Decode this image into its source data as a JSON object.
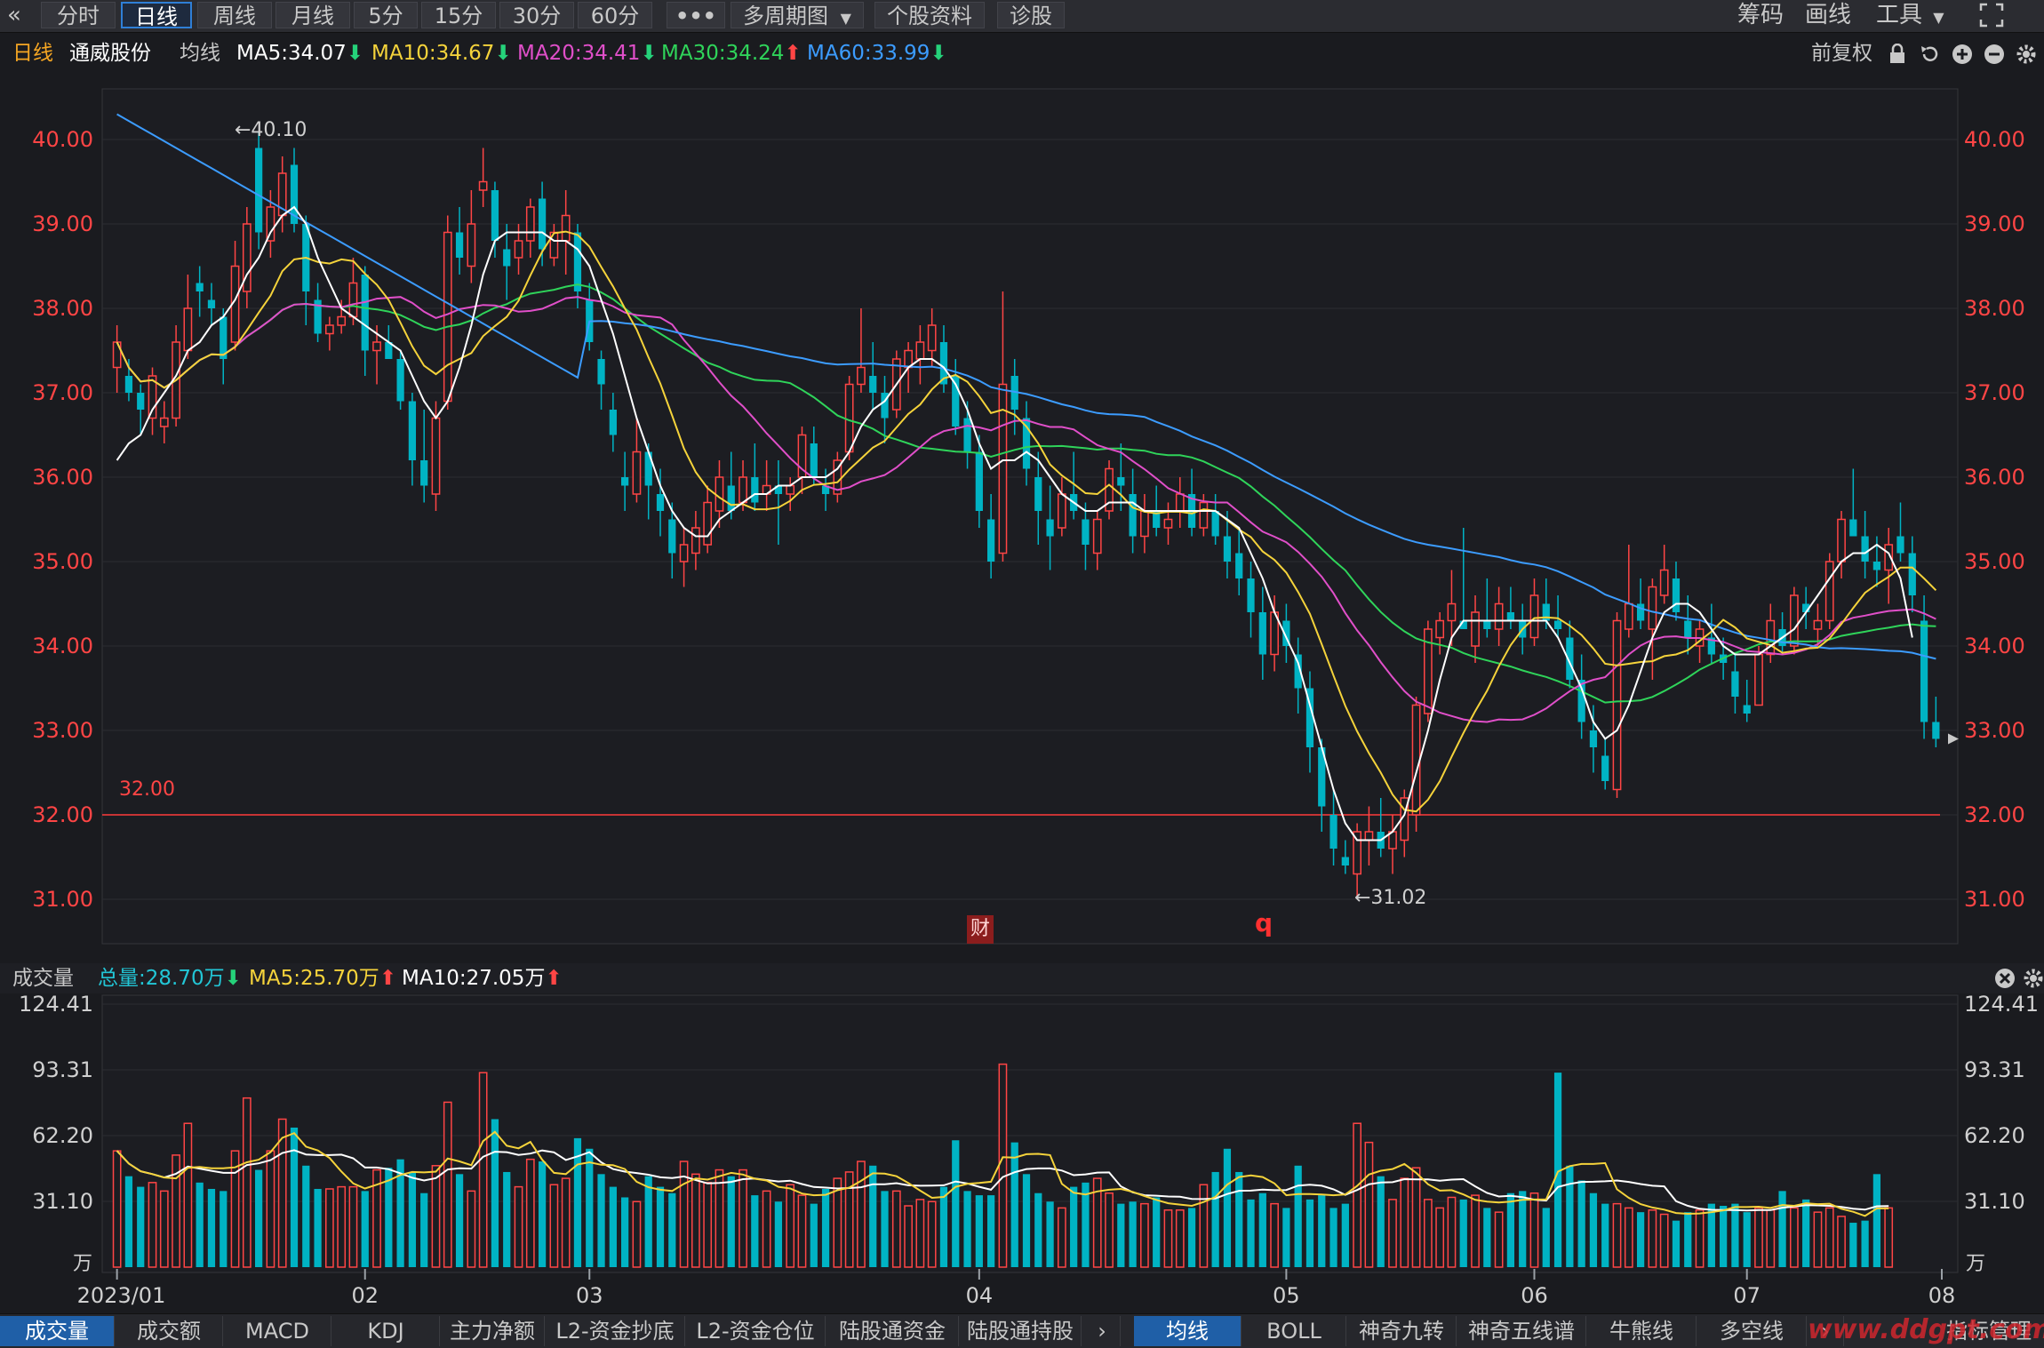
{
  "toolbar": {
    "collapse_icon": "double-chevron-left-icon",
    "tabs": [
      "分时",
      "日线",
      "周线",
      "月线",
      "5分",
      "15分",
      "30分",
      "60分"
    ],
    "active_tab": "日线",
    "more_icon": "ellipsis-icon",
    "multi_period": "多周期图",
    "stock_info": "个股资料",
    "diagnose": "诊股",
    "right": [
      "筹码",
      "画线",
      "工具"
    ],
    "fullscreen_icon": "fullscreen-icon"
  },
  "info": {
    "period": "日线",
    "stock_name": "通威股份",
    "ma_label": "均线",
    "ma5": "MA5:34.07",
    "ma10": "MA10:34.67",
    "ma20": "MA20:34.41",
    "ma30": "MA30:34.24",
    "ma60": "MA60:33.99",
    "adjust": "前复权",
    "icons": [
      "lock-icon",
      "undo-icon",
      "zoom-in-icon",
      "zoom-out-icon",
      "settings-icon"
    ],
    "colors": {
      "ma5": "#ffffff",
      "ma10": "#f5d33b",
      "ma20": "#e04fc9",
      "ma30": "#2fd45a",
      "ma60": "#3c9cff",
      "up": "#ff4545",
      "down": "#00b3c4"
    }
  },
  "price_chart": {
    "y_ticks": [
      "40.00",
      "39.00",
      "38.00",
      "37.00",
      "36.00",
      "35.00",
      "34.00",
      "33.00",
      "32.00",
      "31.00"
    ],
    "high_label": "←40.10",
    "low_label": "←31.02",
    "line_label": "32.00",
    "cai_badge": "财",
    "q_marker": "q"
  },
  "volume": {
    "title": "成交量",
    "total": "总量:28.70万",
    "ma5": "MA5:25.70万",
    "ma10": "MA10:27.05万",
    "y_ticks": [
      "124.41",
      "93.31",
      "62.20",
      "31.10"
    ],
    "unit": "万",
    "close_icon": "close-icon",
    "settings_icon": "settings-icon"
  },
  "x_axis": [
    "2023/01",
    "02",
    "03",
    "04",
    "05",
    "06",
    "07",
    "08"
  ],
  "bottom_tabs_left": [
    "成交量",
    "成交额",
    "MACD",
    "KDJ",
    "主力净额",
    "L2-资金抄底",
    "L2-资金仓位",
    "陆股通资金",
    "陆股通持股"
  ],
  "bottom_tabs_right": [
    "均线",
    "BOLL",
    "神奇九转",
    "神奇五线谱",
    "牛熊线",
    "多空线"
  ],
  "bottom_manage": "指标管理",
  "watermark": "www.ddgpt.com",
  "chart_data": {
    "type": "candlestick",
    "title": "通威股份 日线",
    "ylim": [
      30.5,
      40.5
    ],
    "reference_line": 32.0,
    "ohlc": [
      [
        37.3,
        37.8,
        37.0,
        37.6
      ],
      [
        37.2,
        37.4,
        36.9,
        37.0
      ],
      [
        37.0,
        37.1,
        36.5,
        36.8
      ],
      [
        36.7,
        37.3,
        36.5,
        37.2
      ],
      [
        36.6,
        36.9,
        36.4,
        36.7
      ],
      [
        36.7,
        37.8,
        36.6,
        37.6
      ],
      [
        37.5,
        38.4,
        37.4,
        38.0
      ],
      [
        38.3,
        38.5,
        37.9,
        38.2
      ],
      [
        38.1,
        38.3,
        37.8,
        38.0
      ],
      [
        37.9,
        38.0,
        37.1,
        37.4
      ],
      [
        37.6,
        38.8,
        37.5,
        38.5
      ],
      [
        38.2,
        39.2,
        38.0,
        39.0
      ],
      [
        39.9,
        40.1,
        38.7,
        38.9
      ],
      [
        38.8,
        39.4,
        38.6,
        39.2
      ],
      [
        39.1,
        39.8,
        38.9,
        39.6
      ],
      [
        39.7,
        39.9,
        38.9,
        39.0
      ],
      [
        39.0,
        39.1,
        37.8,
        38.2
      ],
      [
        38.1,
        38.3,
        37.6,
        37.7
      ],
      [
        37.7,
        37.9,
        37.5,
        37.8
      ],
      [
        37.8,
        38.1,
        37.7,
        37.9
      ],
      [
        37.9,
        38.6,
        37.8,
        38.3
      ],
      [
        38.4,
        38.5,
        37.2,
        37.5
      ],
      [
        37.5,
        37.8,
        37.1,
        37.6
      ],
      [
        37.6,
        37.8,
        37.4,
        37.4
      ],
      [
        37.4,
        37.5,
        36.8,
        36.9
      ],
      [
        36.9,
        37.0,
        35.9,
        36.2
      ],
      [
        36.2,
        36.8,
        35.7,
        35.9
      ],
      [
        35.8,
        36.9,
        35.6,
        36.7
      ],
      [
        36.9,
        39.1,
        36.8,
        38.9
      ],
      [
        38.9,
        39.2,
        38.4,
        38.6
      ],
      [
        38.5,
        39.4,
        38.3,
        39.0
      ],
      [
        39.4,
        39.9,
        39.2,
        39.5
      ],
      [
        39.4,
        39.5,
        38.6,
        38.8
      ],
      [
        38.7,
        39.0,
        38.1,
        38.5
      ],
      [
        38.6,
        39.0,
        38.4,
        38.8
      ],
      [
        38.8,
        39.3,
        38.6,
        39.2
      ],
      [
        39.3,
        39.5,
        38.5,
        38.7
      ],
      [
        38.6,
        39.0,
        38.5,
        38.9
      ],
      [
        38.8,
        39.4,
        38.4,
        39.1
      ],
      [
        38.9,
        39.0,
        38.0,
        38.2
      ],
      [
        38.1,
        38.3,
        37.5,
        37.6
      ],
      [
        37.4,
        37.5,
        36.8,
        37.1
      ],
      [
        36.8,
        37.0,
        36.3,
        36.5
      ],
      [
        36.0,
        36.3,
        35.6,
        35.9
      ],
      [
        35.8,
        36.7,
        35.7,
        36.3
      ],
      [
        36.3,
        36.4,
        35.5,
        35.9
      ],
      [
        35.8,
        36.1,
        35.3,
        35.6
      ],
      [
        35.5,
        35.7,
        34.8,
        35.1
      ],
      [
        35.0,
        35.4,
        34.7,
        35.2
      ],
      [
        35.1,
        35.6,
        34.9,
        35.4
      ],
      [
        35.2,
        35.9,
        35.1,
        35.7
      ],
      [
        35.6,
        36.2,
        35.4,
        36.0
      ],
      [
        35.9,
        36.3,
        35.5,
        35.6
      ],
      [
        35.7,
        36.2,
        35.6,
        36.0
      ],
      [
        36.0,
        36.4,
        35.6,
        35.7
      ],
      [
        35.8,
        36.2,
        35.6,
        35.9
      ],
      [
        35.9,
        36.2,
        35.2,
        35.8
      ],
      [
        35.8,
        36.0,
        35.6,
        35.9
      ],
      [
        36.0,
        36.6,
        35.8,
        36.5
      ],
      [
        36.4,
        36.6,
        35.9,
        36.0
      ],
      [
        35.9,
        36.1,
        35.6,
        35.8
      ],
      [
        35.8,
        36.3,
        35.7,
        36.2
      ],
      [
        36.3,
        37.2,
        36.2,
        37.1
      ],
      [
        37.1,
        38.0,
        37.0,
        37.3
      ],
      [
        37.2,
        37.6,
        36.8,
        37.0
      ],
      [
        37.0,
        37.2,
        36.4,
        36.7
      ],
      [
        36.8,
        37.5,
        36.7,
        37.4
      ],
      [
        37.3,
        37.6,
        37.0,
        37.5
      ],
      [
        37.4,
        37.8,
        37.1,
        37.6
      ],
      [
        37.5,
        38.0,
        37.3,
        37.8
      ],
      [
        37.6,
        37.8,
        37.0,
        37.1
      ],
      [
        37.2,
        37.4,
        36.5,
        36.6
      ],
      [
        36.7,
        36.9,
        36.1,
        36.3
      ],
      [
        36.3,
        36.5,
        35.4,
        35.6
      ],
      [
        35.5,
        35.8,
        34.8,
        35.0
      ],
      [
        35.1,
        38.2,
        35.0,
        37.1
      ],
      [
        37.2,
        37.4,
        36.5,
        36.8
      ],
      [
        36.7,
        36.9,
        35.9,
        36.1
      ],
      [
        36.0,
        36.3,
        35.2,
        35.6
      ],
      [
        35.5,
        35.9,
        34.9,
        35.3
      ],
      [
        35.4,
        36.0,
        35.3,
        35.8
      ],
      [
        35.8,
        36.3,
        35.5,
        35.6
      ],
      [
        35.5,
        35.7,
        34.9,
        35.2
      ],
      [
        35.1,
        35.6,
        34.9,
        35.5
      ],
      [
        35.6,
        36.2,
        35.5,
        36.1
      ],
      [
        36.0,
        36.4,
        35.6,
        35.9
      ],
      [
        35.8,
        36.1,
        35.1,
        35.3
      ],
      [
        35.3,
        35.8,
        35.1,
        35.6
      ],
      [
        35.6,
        35.9,
        35.3,
        35.4
      ],
      [
        35.4,
        35.7,
        35.2,
        35.5
      ],
      [
        35.6,
        36.0,
        35.4,
        35.8
      ],
      [
        35.8,
        36.1,
        35.3,
        35.4
      ],
      [
        35.4,
        35.8,
        35.3,
        35.7
      ],
      [
        35.6,
        35.8,
        35.2,
        35.3
      ],
      [
        35.3,
        35.6,
        34.8,
        35.0
      ],
      [
        35.1,
        35.4,
        34.6,
        34.8
      ],
      [
        34.8,
        35.0,
        34.1,
        34.4
      ],
      [
        34.4,
        34.7,
        33.6,
        33.9
      ],
      [
        33.9,
        34.6,
        33.7,
        34.4
      ],
      [
        34.3,
        34.5,
        33.8,
        34.0
      ],
      [
        33.9,
        34.1,
        33.2,
        33.5
      ],
      [
        33.5,
        33.7,
        32.5,
        32.8
      ],
      [
        32.8,
        32.9,
        31.8,
        32.1
      ],
      [
        32.0,
        32.3,
        31.4,
        31.6
      ],
      [
        31.5,
        31.7,
        31.3,
        31.4
      ],
      [
        31.3,
        31.9,
        31.02,
        31.8
      ],
      [
        31.7,
        32.1,
        31.4,
        31.8
      ],
      [
        31.8,
        32.2,
        31.5,
        31.6
      ],
      [
        31.6,
        32.0,
        31.3,
        31.8
      ],
      [
        31.7,
        32.3,
        31.5,
        32.2
      ],
      [
        32.0,
        33.4,
        31.8,
        33.3
      ],
      [
        33.2,
        34.3,
        33.1,
        34.2
      ],
      [
        34.1,
        34.4,
        33.9,
        34.3
      ],
      [
        34.3,
        34.9,
        34.0,
        34.5
      ],
      [
        34.3,
        35.4,
        34.2,
        34.2
      ],
      [
        34.0,
        34.6,
        33.8,
        34.4
      ],
      [
        34.3,
        34.8,
        34.1,
        34.2
      ],
      [
        34.2,
        34.7,
        34.0,
        34.5
      ],
      [
        34.4,
        34.7,
        34.2,
        34.3
      ],
      [
        34.3,
        34.5,
        33.9,
        34.1
      ],
      [
        34.1,
        34.8,
        34.0,
        34.6
      ],
      [
        34.5,
        34.8,
        34.2,
        34.3
      ],
      [
        34.3,
        34.6,
        34.1,
        34.2
      ],
      [
        34.1,
        34.3,
        33.5,
        33.6
      ],
      [
        33.6,
        33.9,
        32.9,
        33.1
      ],
      [
        33.0,
        33.3,
        32.5,
        32.8
      ],
      [
        32.7,
        32.9,
        32.3,
        32.4
      ],
      [
        32.3,
        34.4,
        32.2,
        34.3
      ],
      [
        34.2,
        35.2,
        34.1,
        34.5
      ],
      [
        34.5,
        34.8,
        34.2,
        34.3
      ],
      [
        34.2,
        34.8,
        33.6,
        34.7
      ],
      [
        34.6,
        35.2,
        34.5,
        34.9
      ],
      [
        34.8,
        35.0,
        34.3,
        34.4
      ],
      [
        34.3,
        34.6,
        33.9,
        34.1
      ],
      [
        34.0,
        34.3,
        33.8,
        34.2
      ],
      [
        34.1,
        34.5,
        33.8,
        33.9
      ],
      [
        33.9,
        34.1,
        33.6,
        33.8
      ],
      [
        33.7,
        33.9,
        33.2,
        33.4
      ],
      [
        33.3,
        33.6,
        33.1,
        33.2
      ],
      [
        33.3,
        34.0,
        33.3,
        33.9
      ],
      [
        33.9,
        34.5,
        33.8,
        34.3
      ],
      [
        34.2,
        34.4,
        33.9,
        34.0
      ],
      [
        34.0,
        34.7,
        33.9,
        34.6
      ],
      [
        34.5,
        34.7,
        34.2,
        34.4
      ],
      [
        34.2,
        34.5,
        34.0,
        34.3
      ],
      [
        34.3,
        35.1,
        34.2,
        35.0
      ],
      [
        35.0,
        35.6,
        34.8,
        35.5
      ],
      [
        35.5,
        36.1,
        35.3,
        35.3
      ],
      [
        35.3,
        35.6,
        34.8,
        35.0
      ],
      [
        35.0,
        35.3,
        34.7,
        34.9
      ],
      [
        34.9,
        35.4,
        34.5,
        35.2
      ],
      [
        35.3,
        35.7,
        35.0,
        35.1
      ],
      [
        35.1,
        35.3,
        34.4,
        34.6
      ],
      [
        34.3,
        34.6,
        32.9,
        33.1
      ],
      [
        33.1,
        33.4,
        32.8,
        32.9
      ]
    ],
    "volume": [
      55,
      43,
      38,
      40,
      36,
      53,
      68,
      40,
      37,
      36,
      55,
      80,
      46,
      55,
      70,
      66,
      48,
      37,
      37,
      38,
      38,
      36,
      46,
      47,
      51,
      45,
      35,
      48,
      78,
      44,
      36,
      92,
      70,
      45,
      38,
      51,
      50,
      39,
      42,
      61,
      56,
      44,
      38,
      33,
      31,
      43,
      38,
      35,
      50,
      44,
      40,
      46,
      43,
      46,
      34,
      36,
      31,
      39,
      34,
      30,
      37,
      42,
      45,
      50,
      48,
      36,
      36,
      29,
      32,
      31,
      38,
      60,
      36,
      34,
      34,
      96,
      59,
      44,
      35,
      31,
      28,
      38,
      40,
      42,
      35,
      30,
      31,
      30,
      33,
      27,
      27,
      28,
      39,
      45,
      56,
      45,
      32,
      35,
      30,
      28,
      48,
      32,
      34,
      28,
      30,
      68,
      59,
      43,
      32,
      42,
      47,
      32,
      28,
      33,
      32,
      34,
      28,
      26,
      35,
      36,
      35,
      28,
      92,
      48,
      41,
      35,
      30,
      30,
      28,
      26,
      27,
      25,
      22,
      26,
      27,
      30,
      29,
      30,
      26,
      28,
      27,
      36,
      28,
      32,
      26,
      28,
      24,
      21,
      22,
      44,
      28
    ],
    "ma5": [
      36.2,
      36.4,
      36.5,
      36.8,
      37.0,
      37.2,
      37.5,
      37.6,
      37.8,
      37.9,
      38.1,
      38.4,
      38.6,
      38.9,
      39.1,
      39.2,
      39.0,
      38.6,
      38.3,
      38.0,
      37.9,
      37.8,
      37.7,
      37.6,
      37.5,
      37.2,
      36.9,
      36.7,
      36.9,
      37.3,
      37.8,
      38.4,
      38.8,
      38.9,
      38.9,
      38.9,
      38.9,
      38.8,
      38.8,
      38.7,
      38.5,
      38.1,
      37.7,
      37.2,
      36.7,
      36.3,
      35.9,
      35.6,
      35.4,
      35.3,
      35.3,
      35.5,
      35.6,
      35.7,
      35.8,
      35.8,
      35.9,
      35.9,
      36.0,
      36.0,
      36.0,
      36.1,
      36.3,
      36.6,
      36.8,
      36.9,
      37.1,
      37.3,
      37.4,
      37.4,
      37.3,
      37.1,
      36.8,
      36.4,
      36.1,
      36.2,
      36.2,
      36.3,
      36.2,
      36.0,
      35.8,
      35.7,
      35.6,
      35.6,
      35.7,
      35.7,
      35.7,
      35.6,
      35.6,
      35.6,
      35.6,
      35.6,
      35.6,
      35.6,
      35.5,
      35.4,
      35.1,
      34.8,
      34.4,
      34.1,
      33.8,
      33.3,
      32.8,
      32.3,
      31.9,
      31.7,
      31.7,
      31.7,
      31.8,
      32.0,
      32.5,
      33.0,
      33.6,
      34.1,
      34.3,
      34.3,
      34.3,
      34.3,
      34.3,
      34.3,
      34.3,
      34.3,
      34.1,
      33.8,
      33.5,
      33.1,
      32.9,
      33.0,
      33.3,
      33.7,
      34.1,
      34.4,
      34.5,
      34.5,
      34.4,
      34.2,
      34.0,
      33.9,
      33.9,
      33.9,
      34.0,
      34.1,
      34.2,
      34.4,
      34.6,
      34.8,
      35.0,
      35.1,
      35.1,
      35.2,
      35.1,
      34.8,
      34.1
    ]
  }
}
